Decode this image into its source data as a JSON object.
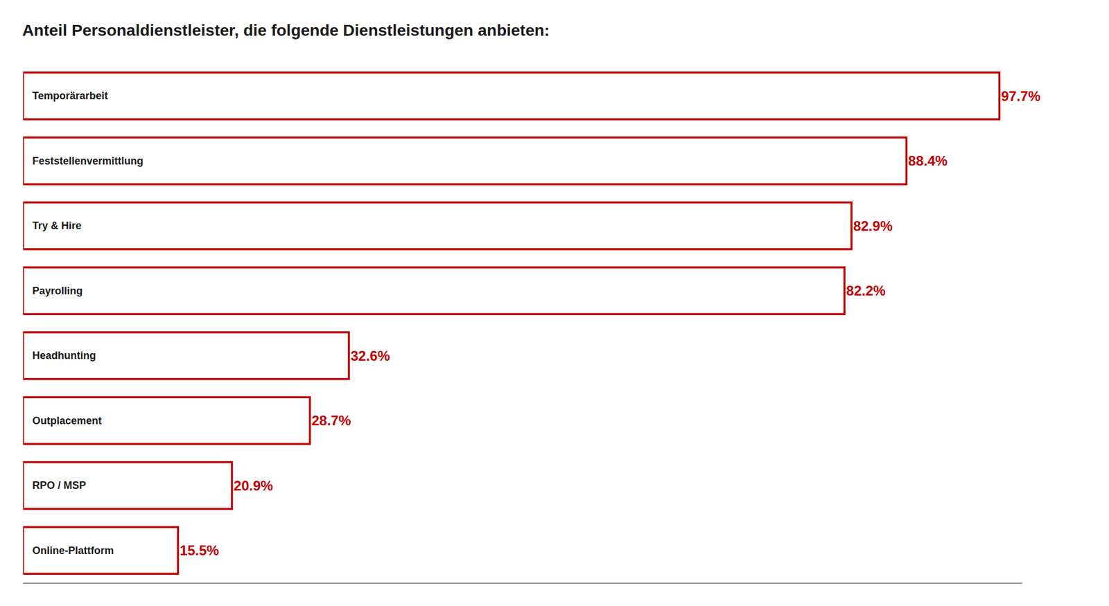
{
  "chart_data": {
    "type": "bar",
    "orientation": "horizontal",
    "title": "Anteil Personaldienstleister, die folgende Dienstleistungen anbieten:",
    "categories": [
      "Temporärarbeit",
      "Feststellenvermittlung",
      "Try & Hire",
      "Payrolling",
      "Headhunting",
      "Outplacement",
      "RPO / MSP",
      "Online-Plattform"
    ],
    "values": [
      97.7,
      88.4,
      82.9,
      82.2,
      32.6,
      28.7,
      20.9,
      15.5
    ],
    "value_labels": [
      "97.7%",
      "88.4%",
      "82.9%",
      "82.2%",
      "32.6%",
      "28.7%",
      "20.9%",
      "15.5%"
    ],
    "color": "#be0000",
    "xlim": [
      0,
      100
    ],
    "grid": false,
    "data_labels": true,
    "tick_labels": false
  }
}
